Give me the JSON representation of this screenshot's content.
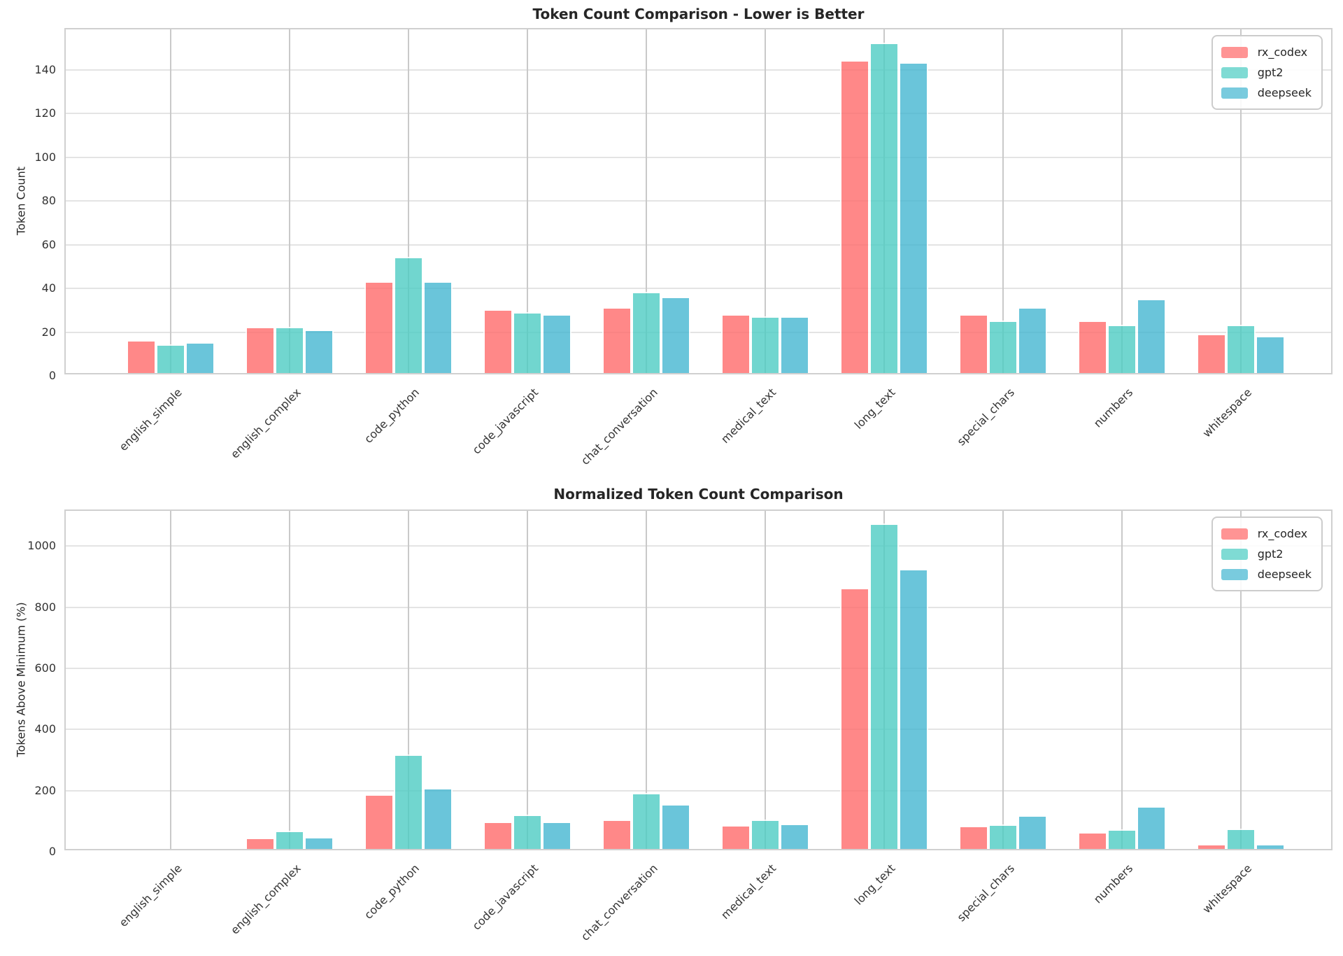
{
  "figure": {
    "background": "#ffffff",
    "text_color": "#262626",
    "grid_color_horizontal": "#e4e4e4",
    "grid_color_vertical": "#c9c9c9"
  },
  "chart_data": [
    {
      "type": "bar",
      "title": "Token Count Comparison - Lower is Better",
      "xlabel": "",
      "ylabel": "Token Count",
      "categories": [
        "english_simple",
        "english_complex",
        "code_python",
        "code_javascript",
        "chat_conversation",
        "medical_text",
        "long_text",
        "special_chars",
        "numbers",
        "whitespace"
      ],
      "series": [
        {
          "name": "rx_codex",
          "color": "#FF6B6B",
          "values": [
            15,
            21,
            42,
            29,
            30,
            27,
            143,
            27,
            24,
            18
          ]
        },
        {
          "name": "gpt2",
          "color": "#4ECDC4",
          "values": [
            13,
            21,
            53,
            28,
            37,
            26,
            151,
            24,
            22,
            22
          ]
        },
        {
          "name": "deepseek",
          "color": "#45B7D1",
          "values": [
            14,
            20,
            42,
            27,
            35,
            26,
            142,
            30,
            34,
            17
          ]
        }
      ],
      "yticks": [
        0,
        20,
        40,
        60,
        80,
        100,
        120,
        140
      ],
      "ylim": [
        0,
        158.4
      ],
      "bar_alpha": 0.8,
      "grid": true,
      "legend_position": "upper right"
    },
    {
      "type": "bar",
      "title": "Normalized Token Count Comparison",
      "xlabel": "",
      "ylabel": "Tokens Above Minimum (%)",
      "categories": [
        "english_simple",
        "english_complex",
        "code_python",
        "code_javascript",
        "chat_conversation",
        "medical_text",
        "long_text",
        "special_chars",
        "numbers",
        "whitespace"
      ],
      "series": [
        {
          "name": "rx_codex",
          "color": "#FF6B6B",
          "values": [
            0,
            36,
            178,
            90,
            97,
            78,
            855,
            76,
            56,
            15
          ]
        },
        {
          "name": "gpt2",
          "color": "#4ECDC4",
          "values": [
            0,
            60,
            308,
            113,
            184,
            97,
            1065,
            81,
            65,
            66
          ]
        },
        {
          "name": "deepseek",
          "color": "#45B7D1",
          "values": [
            0,
            40,
            199,
            90,
            147,
            82,
            915,
            111,
            140,
            15
          ]
        }
      ],
      "yticks": [
        0,
        200,
        400,
        600,
        800,
        1000
      ],
      "ylim": [
        0,
        1115
      ],
      "bar_alpha": 0.8,
      "grid": true,
      "legend_position": "upper right"
    }
  ]
}
